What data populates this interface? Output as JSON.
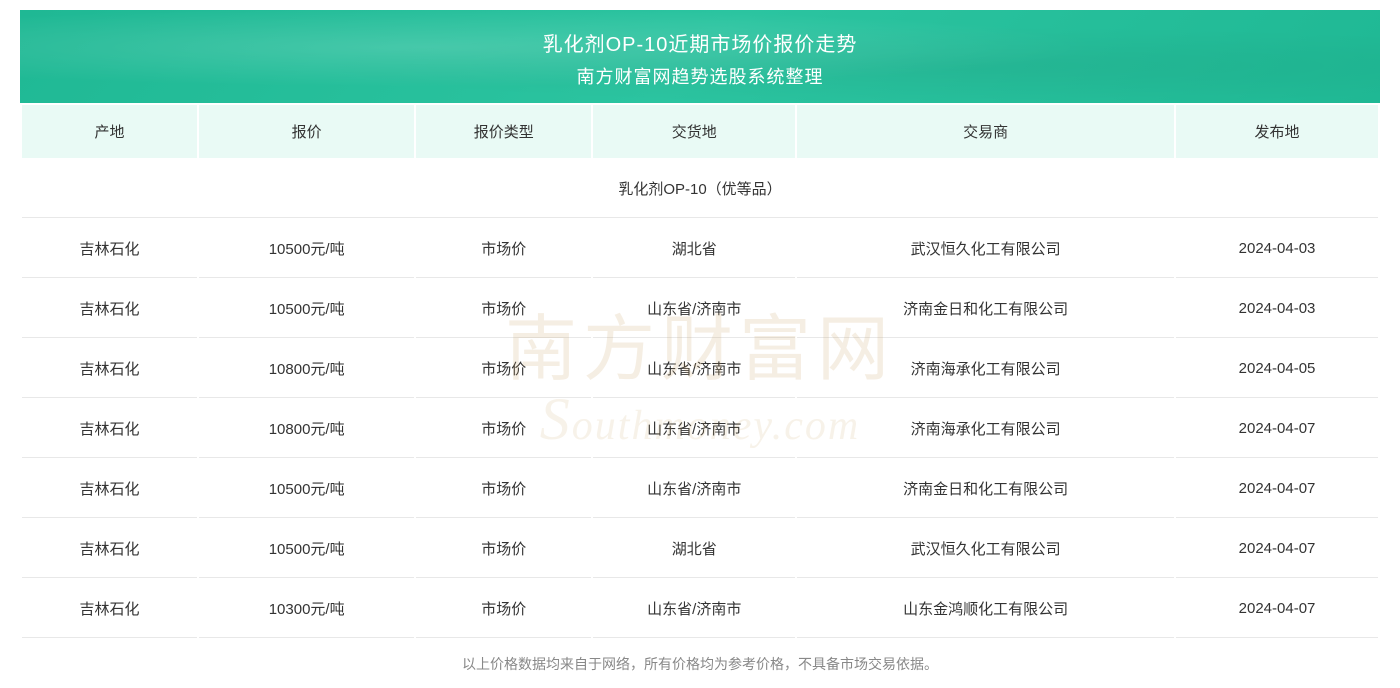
{
  "header": {
    "title": "乳化剂OP-10近期市场价报价走势",
    "subtitle": "南方财富网趋势选股系统整理"
  },
  "columns": [
    "产地",
    "报价",
    "报价类型",
    "交货地",
    "交易商",
    "发布地"
  ],
  "section_label": "乳化剂OP-10（优等品）",
  "rows": [
    {
      "origin": "吉林石化",
      "price": "10500元/吨",
      "type": "市场价",
      "location": "湖北省",
      "trader": "武汉恒久化工有限公司",
      "date": "2024-04-03"
    },
    {
      "origin": "吉林石化",
      "price": "10500元/吨",
      "type": "市场价",
      "location": "山东省/济南市",
      "trader": "济南金日和化工有限公司",
      "date": "2024-04-03"
    },
    {
      "origin": "吉林石化",
      "price": "10800元/吨",
      "type": "市场价",
      "location": "山东省/济南市",
      "trader": "济南海承化工有限公司",
      "date": "2024-04-05"
    },
    {
      "origin": "吉林石化",
      "price": "10800元/吨",
      "type": "市场价",
      "location": "山东省/济南市",
      "trader": "济南海承化工有限公司",
      "date": "2024-04-07"
    },
    {
      "origin": "吉林石化",
      "price": "10500元/吨",
      "type": "市场价",
      "location": "山东省/济南市",
      "trader": "济南金日和化工有限公司",
      "date": "2024-04-07"
    },
    {
      "origin": "吉林石化",
      "price": "10500元/吨",
      "type": "市场价",
      "location": "湖北省",
      "trader": "武汉恒久化工有限公司",
      "date": "2024-04-07"
    },
    {
      "origin": "吉林石化",
      "price": "10300元/吨",
      "type": "市场价",
      "location": "山东省/济南市",
      "trader": "山东金鸿顺化工有限公司",
      "date": "2024-04-07"
    }
  ],
  "disclaimer": "以上价格数据均来自于网络，所有价格均为参考价格，不具备市场交易依据。",
  "watermark": {
    "cn": "南方财富网",
    "en_html": "outhmoney.com"
  },
  "styling": {
    "header_bg": "#1fb894",
    "th_bg": "#e9faf5",
    "text_color": "#333333",
    "disclaimer_color": "#888888",
    "border_color": "#e8e8e8",
    "title_color": "#ffffff",
    "title_fontsize": 20,
    "subtitle_fontsize": 18,
    "cell_fontsize": 15,
    "disclaimer_fontsize": 14,
    "col_widths_pct": [
      13,
      16,
      13,
      15,
      28,
      15
    ]
  }
}
